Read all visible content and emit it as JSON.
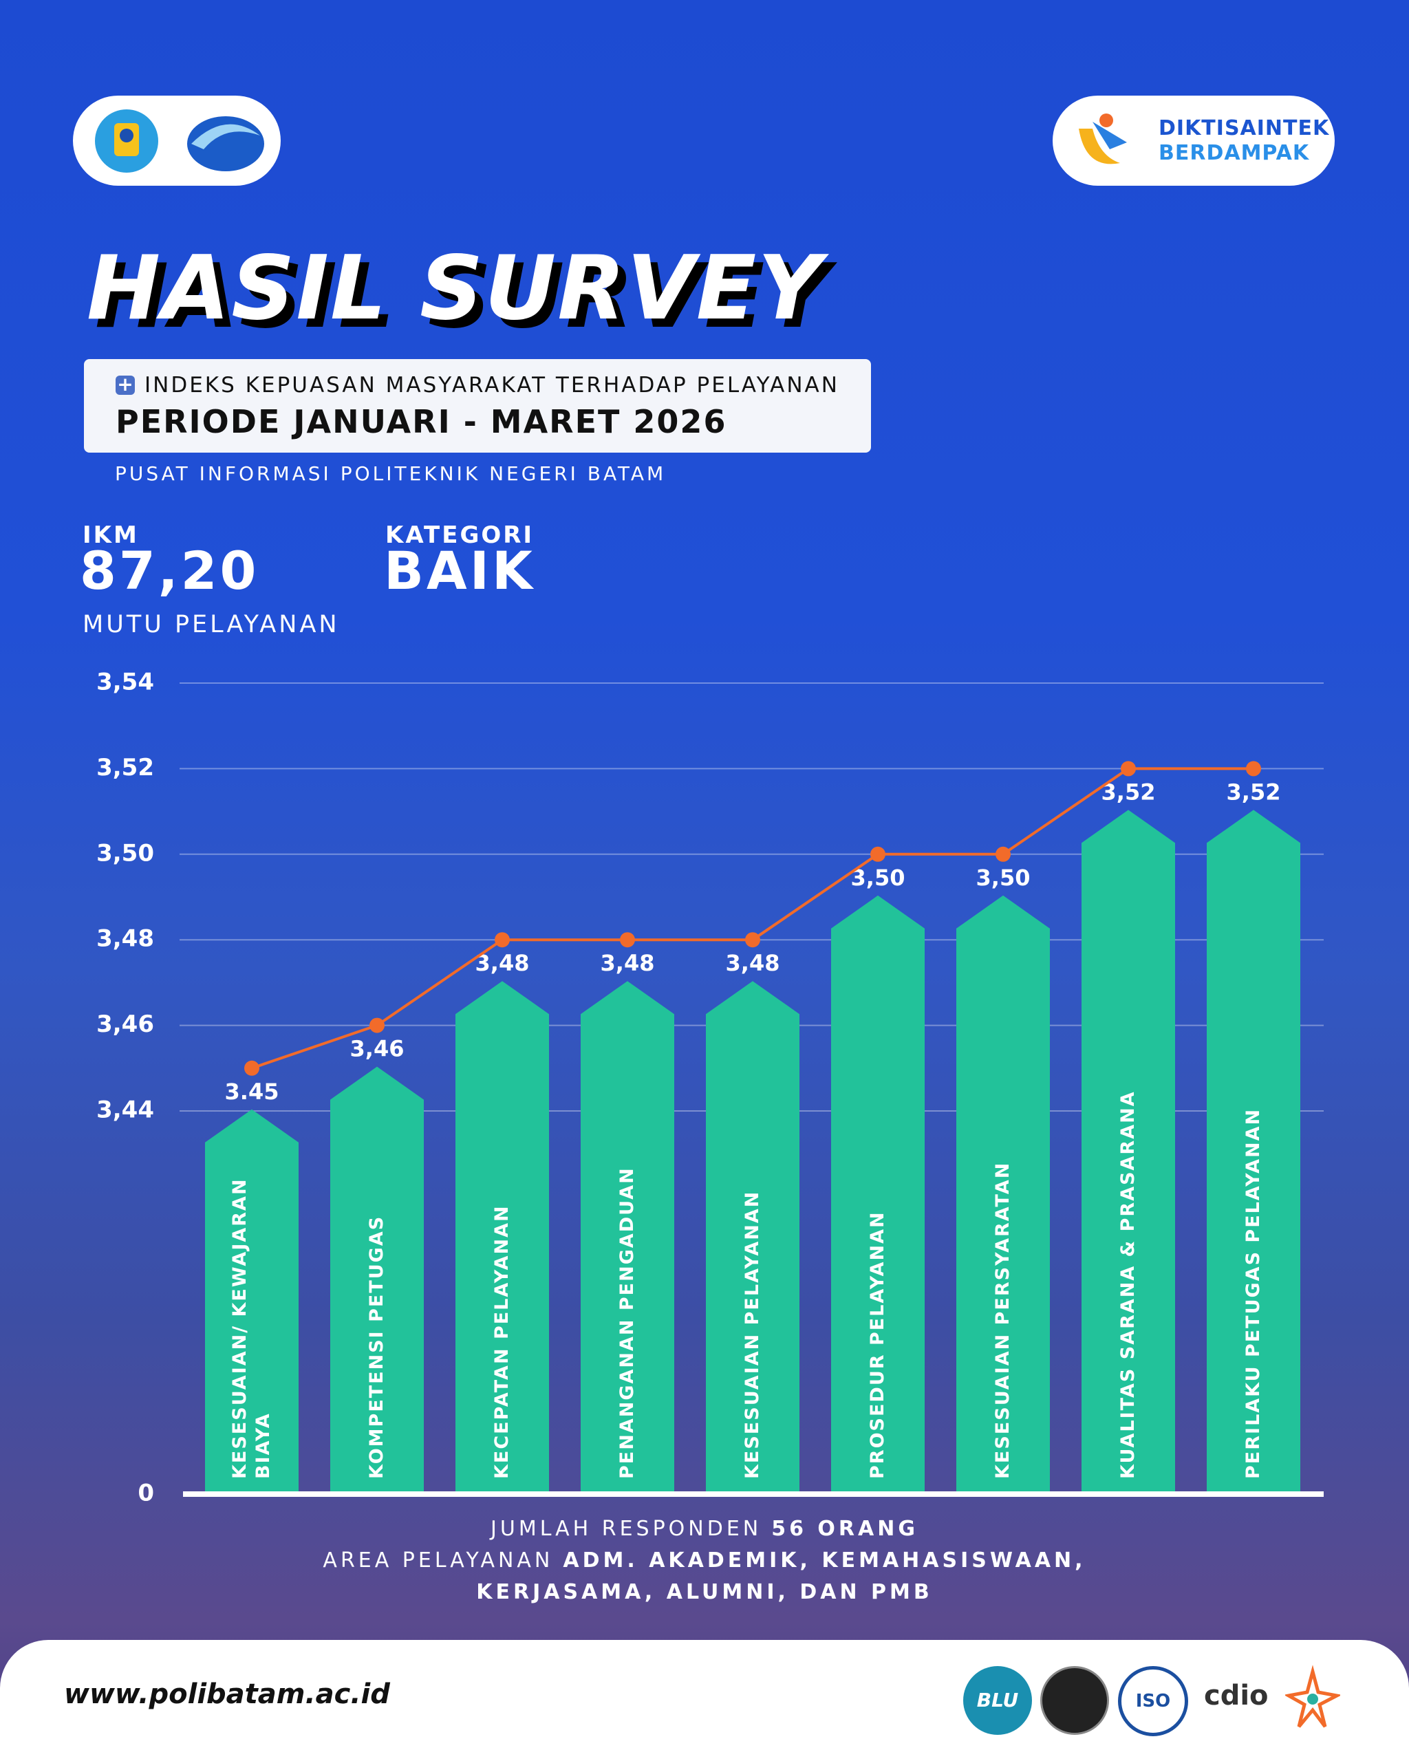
{
  "header": {
    "brand": [
      "DIKTISAINTEK",
      "BERDAMPAK"
    ],
    "title": "HASIL SURVEY",
    "subtitle": "INDEKS KEPUASAN MASYARAKAT TERHADAP PELAYANAN",
    "period": "PERIODE JANUARI - MARET 2026",
    "source": "PUSAT INFORMASI POLITEKNIK NEGERI BATAM"
  },
  "summary": {
    "ikm_label": "IKM",
    "ikm_value": "87,20",
    "ikm_caption": "MUTU PELAYANAN",
    "category_label": "KATEGORI",
    "category_value": "BAIK"
  },
  "chart_data": {
    "type": "bar",
    "categories": [
      "KESESUAIAN/ KEWAJARAN BIAYA",
      "KOMPETENSI PETUGAS",
      "KECEPATAN PELAYANAN",
      "PENANGANAN PENGADUAN",
      "KESESUAIAN PELAYANAN",
      "PROSEDUR PELAYANAN",
      "KESESUAIAN PERSYARATAN",
      "KUALITAS SARANA & PRASARANA",
      "PERILAKU PETUGAS PELAYANAN"
    ],
    "values": [
      3.45,
      3.46,
      3.48,
      3.48,
      3.48,
      3.5,
      3.5,
      3.52,
      3.52
    ],
    "value_labels": [
      "3.45",
      "3,46",
      "3,48",
      "3,48",
      "3,48",
      "3,50",
      "3,50",
      "3,52",
      "3,52"
    ],
    "color": "#22c29a",
    "line_color": "#f26b2a",
    "ylim": [
      0,
      3.54
    ],
    "axis_break": [
      0,
      3.44
    ],
    "yticks": [
      0,
      {
        "value": 3.44,
        "label": "3,44"
      },
      {
        "value": 3.46,
        "label": "3,46"
      },
      {
        "value": 3.48,
        "label": "3,48"
      },
      {
        "value": 3.5,
        "label": "3,50"
      },
      {
        "value": 3.52,
        "label": "3,52"
      },
      {
        "value": 3.54,
        "label": "3,54"
      }
    ],
    "grid": true
  },
  "notes": [
    {
      "regular": "JUMLAH RESPONDEN",
      "bold": "56 ORANG"
    },
    {
      "regular": "AREA PELAYANAN",
      "bold": "ADM. AKADEMIK, KEMAHASISWAAN,"
    },
    {
      "bold": "KERJASAMA, ALUMNI, DAN PMB"
    }
  ],
  "footer": {
    "url": "www.polibatam.ac.id",
    "badges": [
      "BLU",
      "ISO",
      "cdio"
    ]
  }
}
